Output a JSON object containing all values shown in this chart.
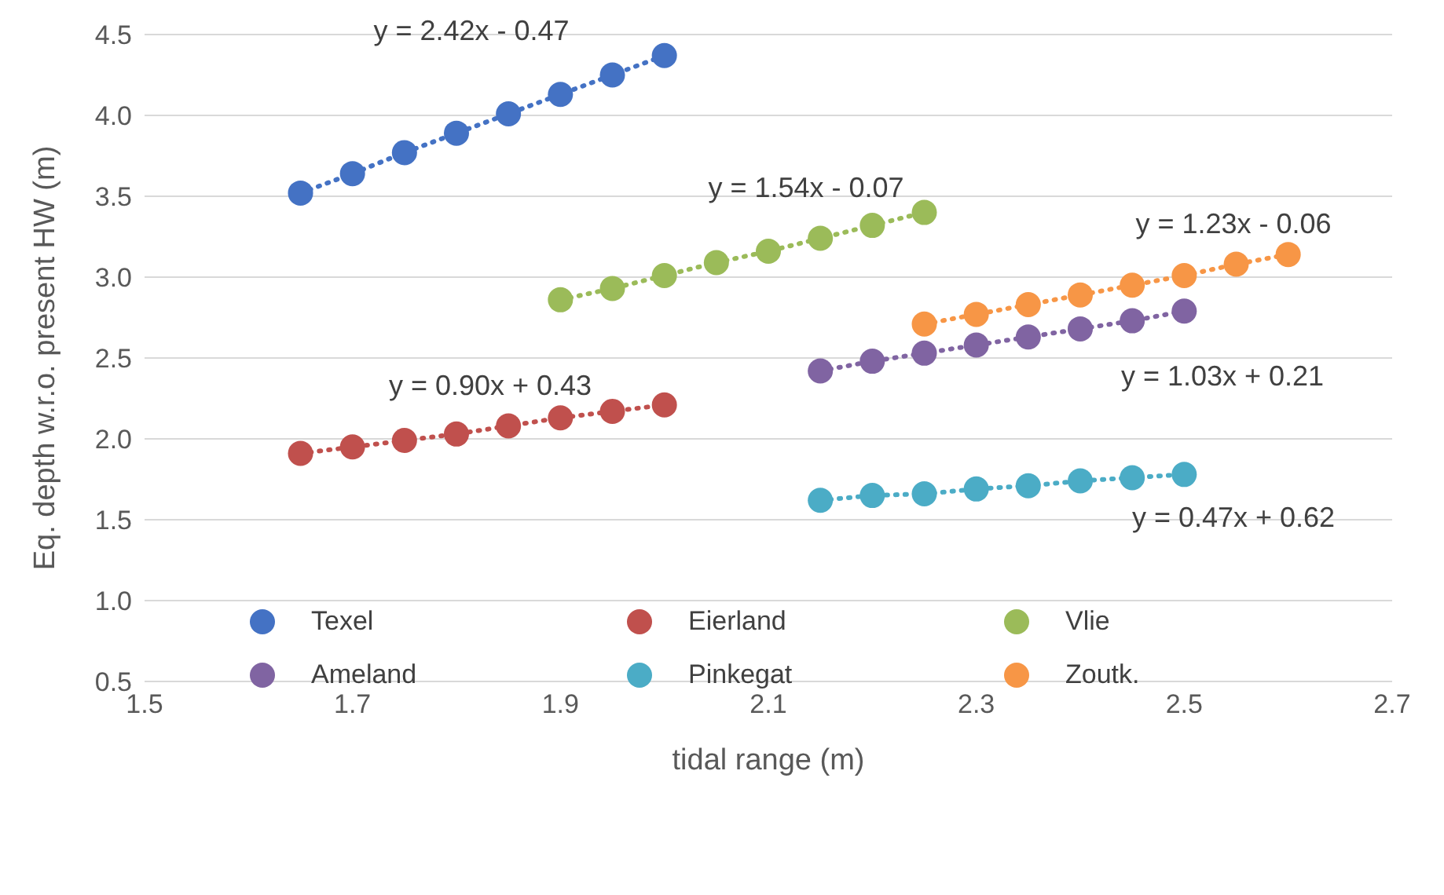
{
  "chart_data": {
    "type": "line",
    "xlabel": "tidal range (m)",
    "ylabel": "Eq. depth w.r.o. present HW (m)",
    "xlim": [
      1.5,
      2.7
    ],
    "xticks": [
      1.5,
      1.7,
      1.9,
      2.1,
      2.3,
      2.5,
      2.7
    ],
    "ylim": [
      0.5,
      4.5
    ],
    "yticks": [
      0.5,
      {
        "value": 1,
        "label": "1.0"
      },
      1.5,
      {
        "value": 2,
        "label": "2.0"
      },
      2.5,
      {
        "value": 3,
        "label": "3.0"
      },
      3.5,
      {
        "value": 4,
        "label": "4.0"
      },
      4.5
    ],
    "grid": "y",
    "legend": "bottom",
    "marker": "circle",
    "line_style": "dotted",
    "series": [
      {
        "name": "Texel",
        "color": "#4472c4",
        "x": [
          1.65,
          1.7,
          1.75,
          1.8,
          1.85,
          1.9,
          1.95,
          2.0
        ],
        "values": [
          3.52,
          3.64,
          3.77,
          3.89,
          4.01,
          4.13,
          4.25,
          4.37
        ]
      },
      {
        "name": "Eierland",
        "color": "#c0504d",
        "x": [
          1.65,
          1.7,
          1.75,
          1.8,
          1.85,
          1.9,
          1.95,
          2.0
        ],
        "values": [
          1.91,
          1.95,
          1.99,
          2.03,
          2.08,
          2.13,
          2.17,
          2.21
        ]
      },
      {
        "name": "Vlie",
        "color": "#9bbb59",
        "x": [
          1.9,
          1.95,
          2.0,
          2.05,
          2.1,
          2.15,
          2.2,
          2.25
        ],
        "values": [
          2.86,
          2.93,
          3.01,
          3.09,
          3.16,
          3.24,
          3.32,
          3.4
        ]
      },
      {
        "name": "Ameland",
        "color": "#8064a2",
        "x": [
          2.15,
          2.2,
          2.25,
          2.3,
          2.35,
          2.4,
          2.45,
          2.5
        ],
        "values": [
          2.42,
          2.48,
          2.53,
          2.58,
          2.63,
          2.68,
          2.73,
          2.79
        ]
      },
      {
        "name": "Pinkegat",
        "color": "#4bacc6",
        "x": [
          2.15,
          2.2,
          2.25,
          2.3,
          2.35,
          2.4,
          2.45,
          2.5
        ],
        "values": [
          1.62,
          1.65,
          1.66,
          1.69,
          1.71,
          1.74,
          1.76,
          1.78
        ]
      },
      {
        "name": "Zoutk.",
        "color": "#f79646",
        "x": [
          2.25,
          2.3,
          2.35,
          2.4,
          2.45,
          2.5,
          2.55,
          2.6
        ],
        "values": [
          2.71,
          2.77,
          2.83,
          2.89,
          2.95,
          3.01,
          3.08,
          3.14
        ]
      }
    ],
    "annotations": [
      "y = 2.42x - 0.47",
      "y = 1.54x - 0.07",
      "y = 1.23x - 0.06",
      "y = 0.90x + 0.43",
      "y = 1.03x + 0.21",
      "y = 0.47x + 0.62"
    ]
  }
}
